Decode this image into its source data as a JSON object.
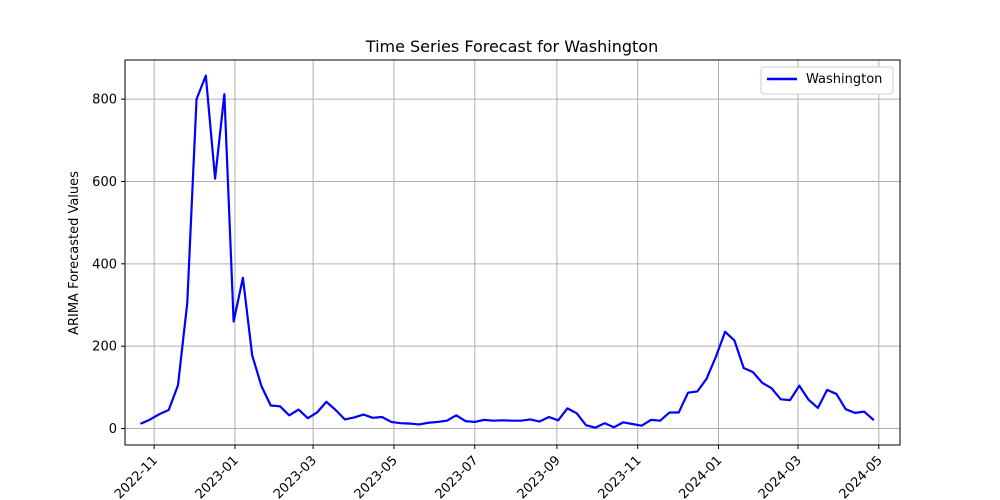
{
  "chart_data": {
    "type": "line",
    "title": "Time Series Forecast for Washington",
    "xlabel": "",
    "ylabel": "ARIMA Forecasted Values",
    "grid": true,
    "legend_position": "top-right",
    "xlim": [
      "2022-10-10",
      "2024-05-17"
    ],
    "ylim": [
      -40,
      895
    ],
    "x_ticks": [
      "2022-11",
      "2023-01",
      "2023-03",
      "2023-05",
      "2023-07",
      "2023-09",
      "2023-11",
      "2024-01",
      "2024-03",
      "2024-05"
    ],
    "y_ticks": [
      0,
      200,
      400,
      600,
      800
    ],
    "series": [
      {
        "name": "Washington",
        "color": "#0000ff",
        "x": [
          "2022-10-22",
          "2022-10-29",
          "2022-11-05",
          "2022-11-12",
          "2022-11-19",
          "2022-11-26",
          "2022-12-03",
          "2022-12-10",
          "2022-12-17",
          "2022-12-24",
          "2022-12-31",
          "2023-01-07",
          "2023-01-14",
          "2023-01-21",
          "2023-01-28",
          "2023-02-04",
          "2023-02-11",
          "2023-02-18",
          "2023-02-25",
          "2023-03-04",
          "2023-03-11",
          "2023-03-18",
          "2023-03-25",
          "2023-04-01",
          "2023-04-08",
          "2023-04-15",
          "2023-04-22",
          "2023-04-29",
          "2023-05-06",
          "2023-05-13",
          "2023-05-20",
          "2023-05-27",
          "2023-06-03",
          "2023-06-10",
          "2023-06-17",
          "2023-06-24",
          "2023-07-01",
          "2023-07-08",
          "2023-07-15",
          "2023-07-22",
          "2023-07-29",
          "2023-08-05",
          "2023-08-12",
          "2023-08-19",
          "2023-08-26",
          "2023-09-02",
          "2023-09-09",
          "2023-09-16",
          "2023-09-23",
          "2023-09-30",
          "2023-10-07",
          "2023-10-14",
          "2023-10-21",
          "2023-10-28",
          "2023-11-04",
          "2023-11-11",
          "2023-11-18",
          "2023-11-25",
          "2023-12-02",
          "2023-12-09",
          "2023-12-16",
          "2023-12-23",
          "2023-12-30",
          "2024-01-06",
          "2024-01-13",
          "2024-01-20",
          "2024-01-27",
          "2024-02-03",
          "2024-02-10",
          "2024-02-17",
          "2024-02-24",
          "2024-03-02",
          "2024-03-09",
          "2024-03-16",
          "2024-03-23",
          "2024-03-30",
          "2024-04-06",
          "2024-04-13",
          "2024-04-20",
          "2024-04-27"
        ],
        "y": [
          12,
          22,
          35,
          45,
          105,
          305,
          800,
          857,
          607,
          812,
          260,
          366,
          178,
          103,
          56,
          54,
          32,
          46,
          25,
          39,
          65,
          45,
          22,
          27,
          34,
          26,
          28,
          16,
          13,
          12,
          10,
          14,
          16,
          19,
          32,
          18,
          16,
          21,
          19,
          20,
          19,
          19,
          22,
          17,
          28,
          20,
          49,
          37,
          8,
          2,
          13,
          3,
          15,
          11,
          7,
          21,
          19,
          39,
          39,
          87,
          90,
          121,
          174,
          235,
          214,
          147,
          137,
          111,
          98,
          71,
          69,
          104,
          70,
          50,
          94,
          84,
          47,
          38,
          41,
          21
        ]
      }
    ]
  }
}
